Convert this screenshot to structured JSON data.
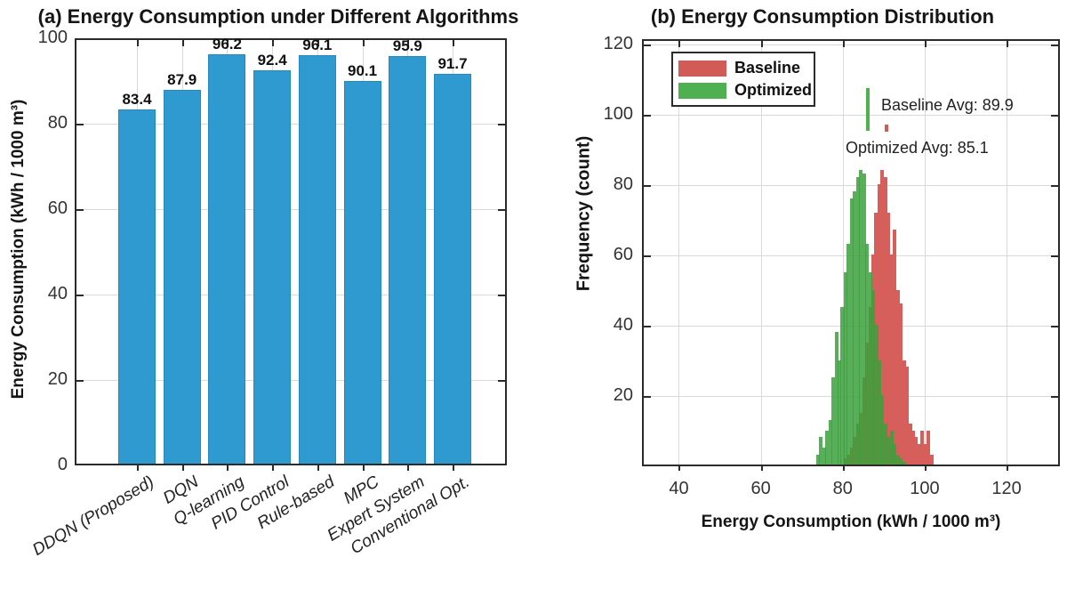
{
  "chart_data": [
    {
      "type": "bar",
      "title": "(a) Energy Consumption under Different Algorithms",
      "ylabel": "Energy Consumption (kWh / 1000 m³)",
      "categories": [
        "DDQN (Proposed)",
        "DQN",
        "Q-learning",
        "PID Control",
        "Rule-based",
        "MPC",
        "Expert System",
        "Conventional Opt."
      ],
      "values": [
        83.4,
        87.9,
        96.2,
        92.4,
        96.1,
        90.1,
        95.9,
        91.7
      ],
      "value_labels": [
        "83.4",
        "87.9",
        "96.2",
        "92.4",
        "96.1",
        "90.1",
        "95.9",
        "91.7"
      ],
      "ylim": [
        0,
        100
      ],
      "yticks": [
        0,
        20,
        40,
        60,
        80,
        100
      ],
      "grid": true,
      "bar_color": "#2E9AD0",
      "bar_edge_color": "#2389BE"
    },
    {
      "type": "histogram",
      "title": "(b) Energy Consumption Distribution",
      "xlabel": "Energy Consumption (kWh / 1000 m³)",
      "ylabel": "Frequency  (count)",
      "xlim": [
        31,
        133
      ],
      "ylim": [
        0,
        122
      ],
      "xticks": [
        40,
        60,
        80,
        100,
        120
      ],
      "yticks": [
        20,
        40,
        60,
        80,
        100,
        120
      ],
      "grid": true,
      "bin_width": 0.75,
      "series": [
        {
          "name": "Baseline",
          "color": "#D75F5B",
          "opacity": 1,
          "bin_start": 80.25,
          "counts": [
            2,
            3,
            5,
            8,
            12,
            15,
            25,
            35,
            45,
            60,
            72,
            80,
            84,
            82,
            72,
            60,
            67,
            50,
            46,
            30,
            28,
            12,
            10,
            8,
            6,
            10,
            6,
            10,
            3
          ]
        },
        {
          "name": "Optimized",
          "color": "#3CA03C",
          "opacity": 0.85,
          "bin_start": 73.5,
          "counts": [
            3,
            8,
            5,
            10,
            13,
            25,
            38,
            30,
            45,
            55,
            63,
            76,
            78,
            82,
            84,
            83,
            63,
            55,
            50,
            40,
            30,
            20,
            12,
            8,
            10,
            6,
            3,
            2,
            1
          ]
        }
      ],
      "legend": [
        {
          "label": "Baseline",
          "color": "#D15B57"
        },
        {
          "label": "Optimized",
          "color": "#4FB04F"
        }
      ],
      "annotations": [
        {
          "text": "Baseline Avg: 89.9",
          "value": 89.9,
          "series": "Baseline"
        },
        {
          "text": "Optimized Avg: 85.1",
          "value": 85.1,
          "series": "Optimized"
        }
      ]
    }
  ]
}
